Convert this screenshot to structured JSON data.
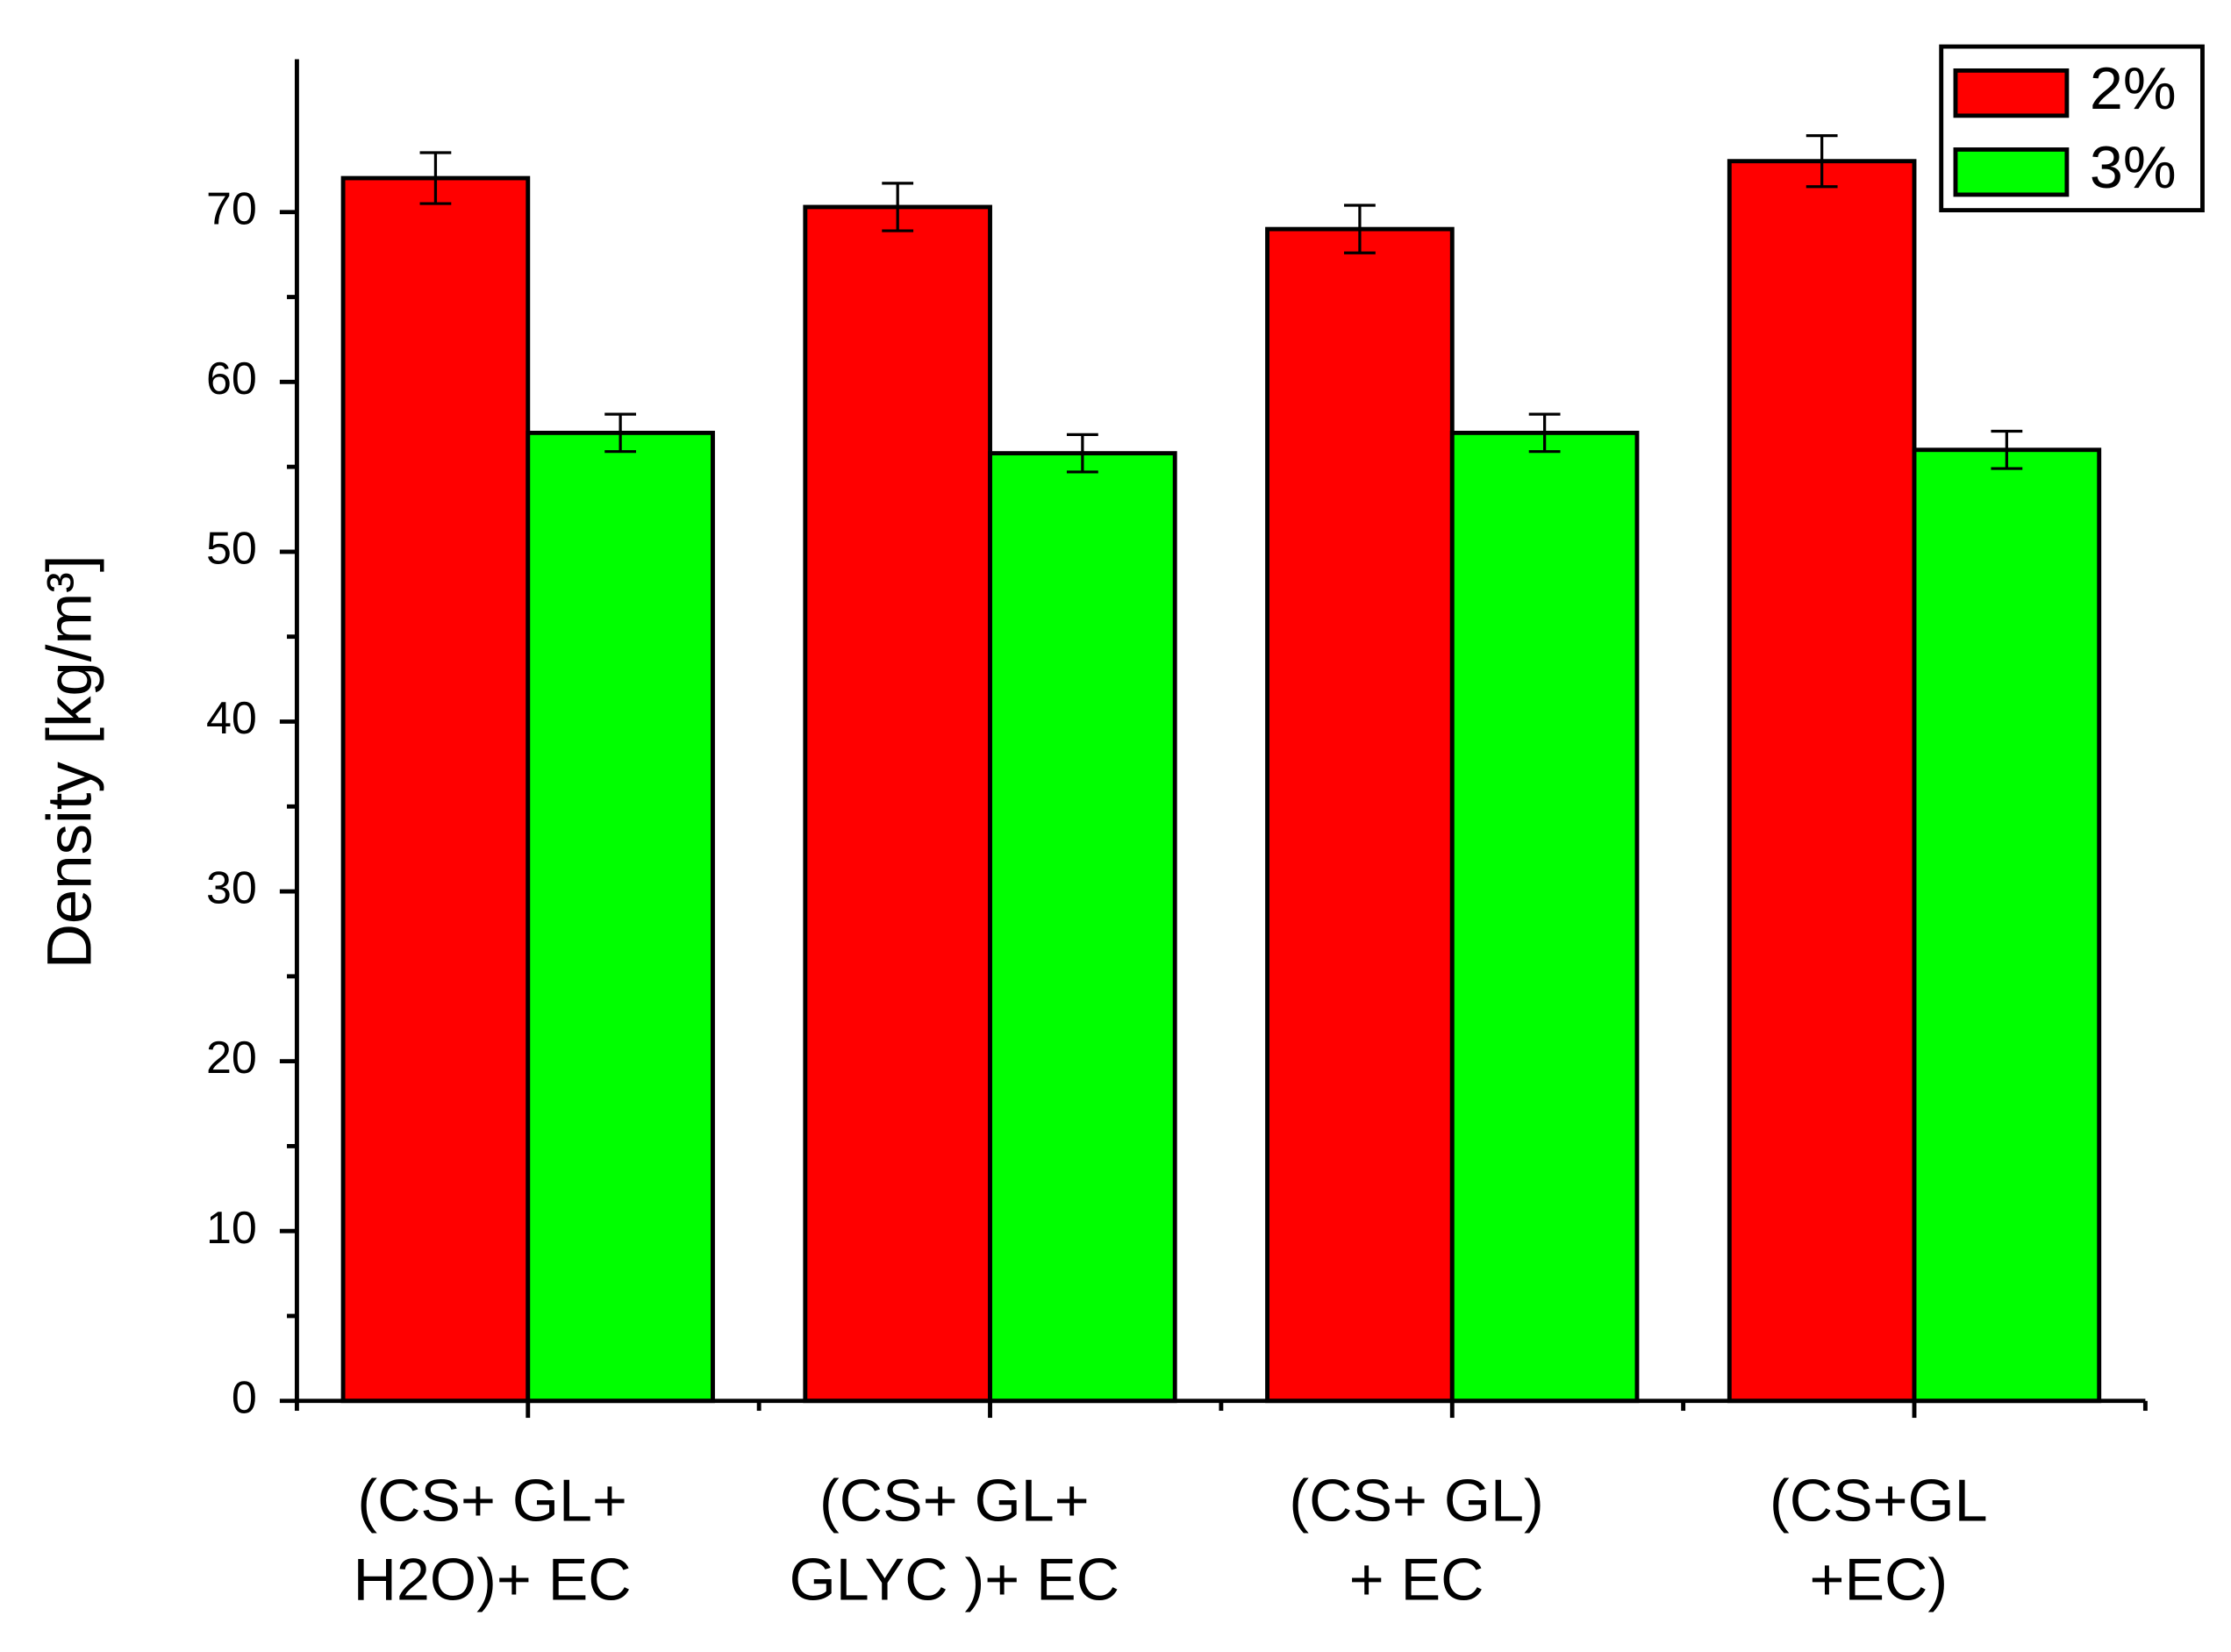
{
  "chart_data": {
    "type": "bar",
    "y_label": "Density [kg/m³]",
    "categories": [
      [
        "(CS+ GL+",
        "H2O)+ EC"
      ],
      [
        "(CS+ GL+",
        "GLYC )+ EC"
      ],
      [
        "(CS+ GL)",
        "+ EC"
      ],
      [
        "(CS+GL",
        "+EC)"
      ]
    ],
    "series": [
      {
        "name": "2%",
        "color": "#ff0000",
        "values": [
          72,
          70.3,
          69,
          73
        ],
        "errors": [
          1.5,
          1.4,
          1.4,
          1.5
        ]
      },
      {
        "name": "3%",
        "color": "#00ff00",
        "values": [
          57,
          55.8,
          57,
          56
        ],
        "errors": [
          1.1,
          1.1,
          1.1,
          1.1
        ]
      }
    ],
    "ylim": [
      0,
      79
    ],
    "yticks": [
      0,
      10,
      20,
      30,
      40,
      50,
      60,
      70
    ],
    "legend": "top-right"
  }
}
